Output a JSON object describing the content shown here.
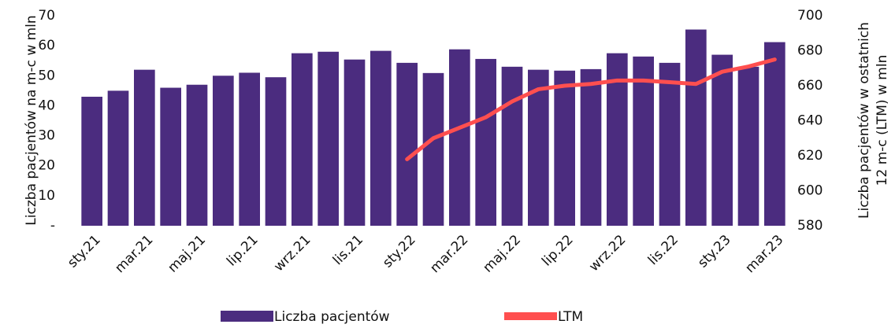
{
  "chart_data": {
    "type": "bar",
    "ylabel": "Liczba pacjentów na m-c w mln",
    "y2label": [
      "Liczba pacjentów w ostatnich",
      "12 m-c (LTM) w mln"
    ],
    "categories": [
      "sty.21",
      null,
      "mar.21",
      null,
      "maj.21",
      null,
      "lip.21",
      null,
      "wrz.21",
      null,
      "lis.21",
      null,
      "sty.22",
      null,
      "mar.22",
      null,
      "maj.22",
      null,
      "lip.22",
      null,
      "wrz.22",
      null,
      "lis.22",
      null,
      "sty.23",
      null,
      "mar.23"
    ],
    "series": [
      {
        "name": "Liczba pacjentów",
        "color": "#4b2c7f",
        "type": "bar",
        "values": [
          43,
          45,
          52,
          46,
          47,
          50,
          51,
          49.5,
          57.5,
          58,
          55.4,
          58.3,
          54.3,
          50.9,
          58.8,
          55.6,
          53,
          52,
          51.7,
          52.2,
          57.5,
          56.4,
          54.3,
          65.4,
          57,
          53,
          61.2
        ]
      },
      {
        "name": "LTM",
        "color": "#ff4f4f",
        "type": "line",
        "axis": "y2",
        "values": [
          null,
          null,
          null,
          null,
          null,
          null,
          null,
          null,
          null,
          null,
          null,
          null,
          618,
          630,
          636,
          642,
          651,
          658,
          660,
          661,
          663,
          663,
          662,
          661,
          668,
          671,
          675
        ]
      }
    ],
    "ylim": [
      0,
      70
    ],
    "yticks": [
      {
        "value": 0,
        "label": "-"
      },
      10,
      20,
      30,
      40,
      50,
      60,
      70
    ],
    "y2lim": [
      580,
      700
    ],
    "y2ticks": [
      580,
      600,
      620,
      640,
      660,
      680,
      700
    ],
    "legend": "bottom"
  }
}
